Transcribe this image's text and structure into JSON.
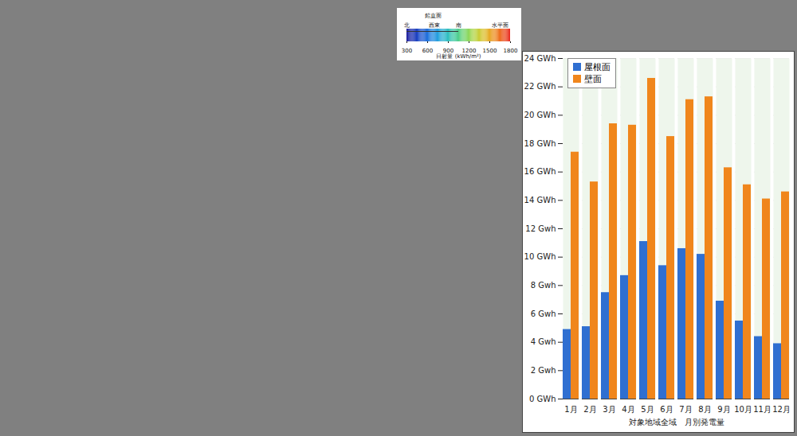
{
  "chart_data": [
    {
      "type": "bar",
      "categories": [
        "1月",
        "2月",
        "3月",
        "4月",
        "5月",
        "6月",
        "7月",
        "8月",
        "9月",
        "10月",
        "11月",
        "12月"
      ],
      "series": [
        {
          "name": "屋根面",
          "color": "#2f6fd1",
          "values": [
            4.9,
            5.1,
            7.5,
            8.7,
            11.1,
            9.4,
            10.6,
            10.2,
            6.9,
            5.5,
            4.4,
            3.9
          ]
        },
        {
          "name": "壁面",
          "color": "#f0861c",
          "values": [
            17.4,
            15.3,
            19.4,
            19.3,
            22.6,
            18.5,
            21.1,
            21.3,
            16.3,
            15.1,
            14.1,
            14.6
          ]
        }
      ],
      "xlabel": "対象地域全域　月別発電量",
      "ylim": [
        0,
        24
      ],
      "yticks": [
        {
          "value": 0,
          "label": "0 GWh"
        },
        {
          "value": 2,
          "label": "2 Gwh"
        },
        {
          "value": 4,
          "label": "4 Gwh"
        },
        {
          "value": 6,
          "label": "6 Gwh"
        },
        {
          "value": 8,
          "label": "8 Gwh"
        },
        {
          "value": 10,
          "label": "10 GWh"
        },
        {
          "value": 12,
          "label": "12 Gwh"
        },
        {
          "value": 14,
          "label": "14 GWh"
        },
        {
          "value": 16,
          "label": "16 GWh"
        },
        {
          "value": 18,
          "label": "18 GWh"
        },
        {
          "value": 20,
          "label": "20 GWh"
        },
        {
          "value": 22,
          "label": "22 GWh"
        },
        {
          "value": 24,
          "label": "24 GWh"
        }
      ],
      "grid": true,
      "legend": "top-left"
    },
    {
      "type": "colorbar",
      "title": "鉛直面",
      "xlabel": "日射量 (kWh/m²)",
      "xlim": [
        300,
        1800
      ],
      "xticks": [
        300,
        600,
        900,
        1200,
        1500,
        1800
      ],
      "colors": [
        "#1c1c9c",
        "#1f5fe0",
        "#27b7e8",
        "#3fd08a",
        "#c8e03a",
        "#f5a623",
        "#e8281e"
      ],
      "annotations": [
        {
          "text": "北",
          "x": 300
        },
        {
          "text": "西東",
          "x": 700
        },
        {
          "text": "南",
          "x": 1050
        },
        {
          "text": "水平面",
          "x": 1650
        }
      ]
    }
  ]
}
